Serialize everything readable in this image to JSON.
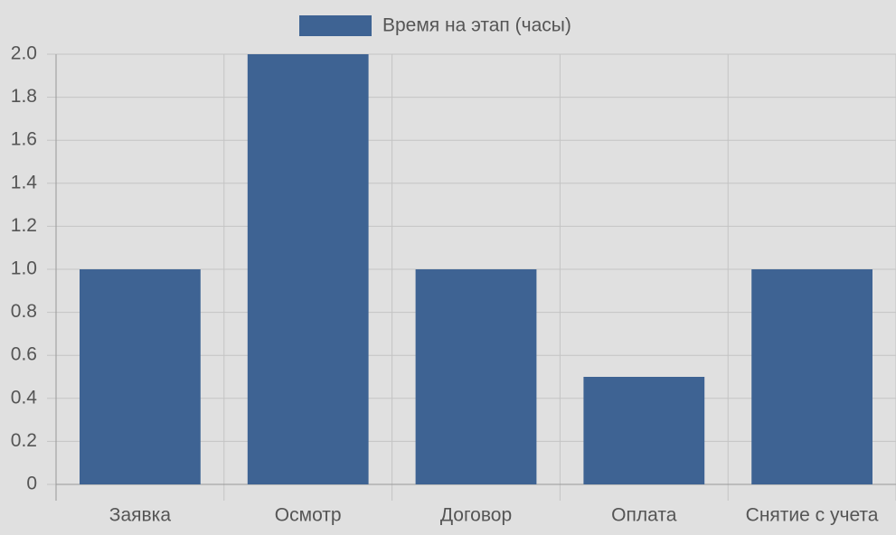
{
  "chart_data": {
    "type": "bar",
    "legend": "Время на этап (часы)",
    "categories": [
      "Заявка",
      "Осмотр",
      "Договор",
      "Оплата",
      "Снятие с учета"
    ],
    "values": [
      1,
      2,
      1,
      0.5,
      1
    ],
    "color": "#3e6393",
    "ylim": [
      0,
      2
    ],
    "yticks": [
      0,
      0.2,
      0.4,
      0.6,
      0.8,
      {
        "value": 1,
        "label": "1.0"
      },
      1.2,
      1.4,
      1.6,
      1.8,
      {
        "value": 2,
        "label": "2.0"
      }
    ],
    "grid": true
  }
}
